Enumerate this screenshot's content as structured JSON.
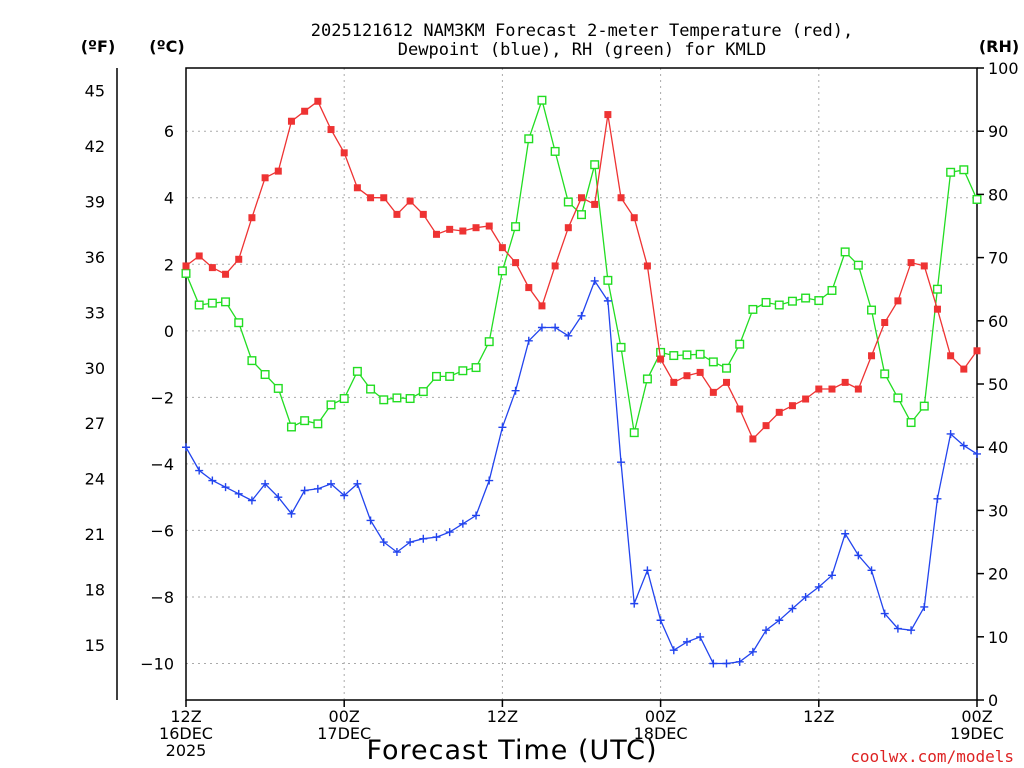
{
  "chart_data": {
    "type": "line",
    "title_line1": "2025121612 NAM3KM Forecast 2-meter Temperature (red),",
    "title_line2": "Dewpoint (blue), RH (green) for KMLD",
    "xlabel": "Forecast Time (UTC)",
    "credit": "coolwx.com/models",
    "units": {
      "far": "(ºF)",
      "cel": "(ºC)",
      "rh": "(RH)"
    },
    "x_range_hours": [
      0,
      60
    ],
    "y_celsius_range": [
      -11.097,
      7.9
    ],
    "y_rh_range": [
      0,
      100
    ],
    "x_ticks": [
      {
        "hour": 0,
        "line1": "12Z",
        "line2": "16DEC",
        "line3": "2025"
      },
      {
        "hour": 12,
        "line1": "00Z",
        "line2": "17DEC",
        "line3": ""
      },
      {
        "hour": 24,
        "line1": "12Z",
        "line2": "",
        "line3": ""
      },
      {
        "hour": 36,
        "line1": "00Z",
        "line2": "18DEC",
        "line3": ""
      },
      {
        "hour": 48,
        "line1": "12Z",
        "line2": "",
        "line3": ""
      },
      {
        "hour": 60,
        "line1": "00Z",
        "line2": "19DEC",
        "line3": ""
      }
    ],
    "celsius_ticks": [
      {
        "value": 6,
        "label": "6"
      },
      {
        "value": 4,
        "label": "4"
      },
      {
        "value": 2,
        "label": "2"
      },
      {
        "value": 0,
        "label": "0"
      },
      {
        "value": -2,
        "label": "−2"
      },
      {
        "value": -4,
        "label": "−4"
      },
      {
        "value": -6,
        "label": "−6"
      },
      {
        "value": -8,
        "label": "−8"
      },
      {
        "value": -10,
        "label": "−10"
      }
    ],
    "fahrenheit_ticks": [
      {
        "value": 45,
        "label": "45"
      },
      {
        "value": 42,
        "label": "42"
      },
      {
        "value": 39,
        "label": "39"
      },
      {
        "value": 36,
        "label": "36"
      },
      {
        "value": 33,
        "label": "33"
      },
      {
        "value": 30,
        "label": "30"
      },
      {
        "value": 27,
        "label": "27"
      },
      {
        "value": 24,
        "label": "24"
      },
      {
        "value": 21,
        "label": "21"
      },
      {
        "value": 18,
        "label": "18"
      },
      {
        "value": 15,
        "label": "15"
      }
    ],
    "rh_ticks": [
      {
        "value": 100,
        "label": "100"
      },
      {
        "value": 90,
        "label": "90"
      },
      {
        "value": 80,
        "label": "80"
      },
      {
        "value": 70,
        "label": "70"
      },
      {
        "value": 60,
        "label": "60"
      },
      {
        "value": 50,
        "label": "50"
      },
      {
        "value": 40,
        "label": "40"
      },
      {
        "value": 30,
        "label": "30"
      },
      {
        "value": 20,
        "label": "20"
      },
      {
        "value": 10,
        "label": "10"
      },
      {
        "value": 0,
        "label": "0"
      }
    ],
    "hours": [
      0,
      1,
      2,
      3,
      4,
      5,
      6,
      7,
      8,
      9,
      10,
      11,
      12,
      13,
      14,
      15,
      16,
      17,
      18,
      19,
      20,
      21,
      22,
      23,
      24,
      25,
      26,
      27,
      28,
      29,
      30,
      31,
      32,
      33,
      34,
      35,
      36,
      37,
      38,
      39,
      40,
      41,
      42,
      43,
      44,
      45,
      46,
      47,
      48,
      49,
      50,
      51,
      52,
      53,
      54,
      55,
      56,
      57,
      58,
      59,
      60
    ],
    "series": [
      {
        "name": "Temperature (°C)",
        "color": "#ee3333",
        "marker": "filled-square",
        "axis": "celsius",
        "values": [
          1.95,
          2.25,
          1.9,
          1.7,
          2.15,
          3.4,
          4.6,
          4.8,
          6.3,
          6.6,
          6.9,
          6.05,
          5.35,
          4.3,
          4,
          4,
          3.5,
          3.9,
          3.5,
          2.9,
          3.05,
          3,
          3.1,
          3.15,
          2.5,
          2.05,
          1.3,
          0.75,
          1.95,
          3.1,
          4,
          3.8,
          6.5,
          4,
          3.4,
          1.95,
          -0.85,
          -1.55,
          -1.35,
          -1.25,
          -1.85,
          -1.55,
          -2.35,
          -3.25,
          -2.85,
          -2.45,
          -2.25,
          -2.05,
          -1.75,
          -1.75,
          -1.55,
          -1.75,
          -0.75,
          0.25,
          0.9,
          2.05,
          1.95,
          0.65,
          -0.75,
          -1.15,
          -0.6
        ]
      },
      {
        "name": "Dewpoint (°C)",
        "color": "#2244ee",
        "marker": "plus",
        "axis": "celsius",
        "values": [
          -3.5,
          -4.2,
          -4.5,
          -4.7,
          -4.9,
          -5.1,
          -4.6,
          -5,
          -5.5,
          -4.8,
          -4.75,
          -4.6,
          -4.95,
          -4.6,
          -5.7,
          -6.35,
          -6.65,
          -6.35,
          -6.25,
          -6.2,
          -6.05,
          -5.8,
          -5.55,
          -4.5,
          -2.9,
          -1.8,
          -0.3,
          0.1,
          0.1,
          -0.15,
          0.45,
          1.5,
          0.9,
          -3.95,
          -8.2,
          -7.2,
          -8.7,
          -9.6,
          -9.35,
          -9.2,
          -10,
          -10,
          -9.95,
          -9.65,
          -9,
          -8.7,
          -8.35,
          -8,
          -7.7,
          -7.35,
          -6.1,
          -6.75,
          -7.2,
          -8.5,
          -8.95,
          -9,
          -8.3,
          -5.05,
          -3.1,
          -3.45,
          -3.7
        ]
      },
      {
        "name": "RH (%)",
        "color": "#22dd22",
        "marker": "open-square",
        "axis": "rh",
        "values": [
          67.5,
          62.5,
          62.8,
          63,
          59.7,
          53.7,
          51.5,
          49.3,
          43.2,
          44.2,
          43.7,
          46.7,
          47.7,
          52,
          49.2,
          47.5,
          47.8,
          47.7,
          48.8,
          51.2,
          51.2,
          52.1,
          52.6,
          56.7,
          67.9,
          74.9,
          88.8,
          94.9,
          86.8,
          78.8,
          76.8,
          84.7,
          66.4,
          55.8,
          42.3,
          50.8,
          55,
          54.5,
          54.6,
          54.7,
          53.5,
          52.5,
          56.3,
          61.8,
          62.9,
          62.5,
          63.1,
          63.6,
          63.2,
          64.8,
          70.9,
          68.8,
          61.7,
          51.6,
          47.8,
          43.9,
          46.5,
          65,
          83.5,
          83.9,
          79.2
        ]
      }
    ]
  }
}
